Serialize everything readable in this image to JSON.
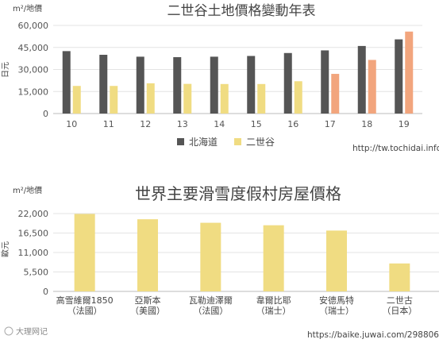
{
  "chart_data": [
    {
      "type": "bar",
      "title": "二世谷土地價格變動年表",
      "unit_label": "m²/地價",
      "ylabel": "日元",
      "ylim": [
        0,
        60000
      ],
      "yticks": [
        "0",
        "15,000",
        "30,000",
        "45,000",
        "60,000"
      ],
      "categories": [
        "10",
        "11",
        "12",
        "13",
        "14",
        "15",
        "16",
        "17",
        "18",
        "19"
      ],
      "series": [
        {
          "name": "北海道",
          "color": "#555555",
          "values": [
            42500,
            40000,
            38700,
            38400,
            38700,
            39200,
            41200,
            43000,
            46000,
            50500
          ]
        },
        {
          "name": "二世谷",
          "color": "#f0dc82",
          "highlight_color": "#f2a57d",
          "values": [
            18800,
            18800,
            20600,
            20200,
            20100,
            20100,
            22000,
            27000,
            36500,
            55800
          ]
        }
      ],
      "legend_position": "bottom",
      "grid": true,
      "source": "http://tw.tochidai.info/"
    },
    {
      "type": "bar",
      "title": "世界主要滑雪度假村房屋價格",
      "unit_label": "m²/地價",
      "ylabel": "歐元",
      "ylim": [
        0,
        22000
      ],
      "yticks": [
        "0",
        "5,500",
        "11,000",
        "16,500",
        "22,000"
      ],
      "categories": [
        [
          "高雪維爾1850",
          "（法國）"
        ],
        [
          "亞斯本",
          "（美國）"
        ],
        [
          "瓦勒迪澤爾",
          "（法國）"
        ],
        [
          "韋爾比耶",
          "（瑞士）"
        ],
        [
          "安德馬特",
          "（瑞士）"
        ],
        [
          "二世古",
          "（日本）"
        ]
      ],
      "series": [
        {
          "color": "#f0dc82",
          "values": [
            21900,
            20400,
            19400,
            18700,
            17200,
            7900
          ]
        }
      ],
      "grid": true,
      "source": "https://baike.juwai.com/298806",
      "watermark": "大理网记"
    }
  ]
}
